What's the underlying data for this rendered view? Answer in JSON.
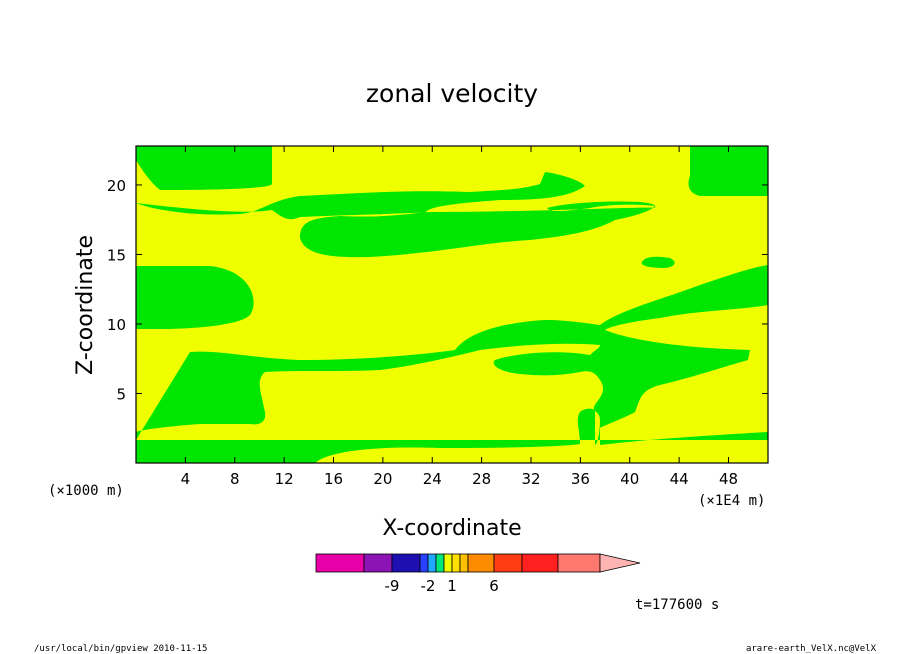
{
  "chart_data": {
    "type": "heatmap",
    "title": "zonal velocity",
    "xlabel": "X-coordinate",
    "ylabel": "Z-coordinate",
    "x_unit": "(×1E4 m)",
    "y_unit": "(×1000 m)",
    "xlim": [
      0,
      51.2
    ],
    "ylim": [
      0,
      22.8
    ],
    "xticks": [
      "4",
      "8",
      "12",
      "16",
      "20",
      "24",
      "28",
      "32",
      "36",
      "40",
      "44",
      "48"
    ],
    "yticks": [
      "5",
      "10",
      "15",
      "20"
    ],
    "xtick_values": [
      4,
      8,
      12,
      16,
      20,
      24,
      28,
      32,
      36,
      40,
      44,
      48
    ],
    "ytick_values": [
      5,
      10,
      15,
      20
    ],
    "colorbar": {
      "colors": [
        "#e800a8",
        "#8c14b4",
        "#1e10b0",
        "#2840ff",
        "#20a8ff",
        "#00e87a",
        "#f0ff00",
        "#ffe000",
        "#ffc000",
        "#ff8c00",
        "#ff3c14",
        "#ff2020",
        "#ff7870",
        "#ffb4b4"
      ],
      "labels": [
        "-9",
        "-2",
        "1",
        "6"
      ]
    },
    "field_colors": {
      "low": "#00e600",
      "high": "#f0ff00"
    },
    "time_label": "t=177600 s"
  },
  "footer": {
    "left": "/usr/local/bin/gpview  2010-11-15",
    "right": "arare-earth_VelX.nc@VelX"
  }
}
